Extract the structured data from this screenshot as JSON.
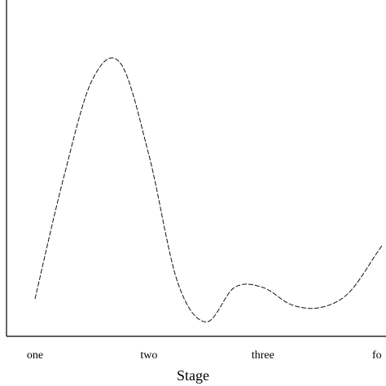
{
  "chart_data": {
    "type": "line",
    "title": "",
    "xlabel": "Stage",
    "ylabel": "",
    "categories": [
      "one",
      "two",
      "three",
      "fo"
    ],
    "grid": false,
    "series": [
      {
        "line_style": "dashed",
        "color": "#111111",
        "x": [
          1.0,
          1.25,
          1.5,
          1.75,
          2.0,
          2.25,
          2.5,
          2.75,
          3.0,
          3.25,
          3.5,
          3.75,
          4.0,
          4.05
        ],
        "y": [
          0.08,
          0.5,
          0.84,
          0.9,
          0.58,
          0.14,
          0.0,
          0.12,
          0.12,
          0.06,
          0.05,
          0.1,
          0.24,
          0.27
        ]
      }
    ],
    "xlim": [
      0.75,
      4.08
    ],
    "ylim": [
      -0.05,
      1.12
    ]
  }
}
